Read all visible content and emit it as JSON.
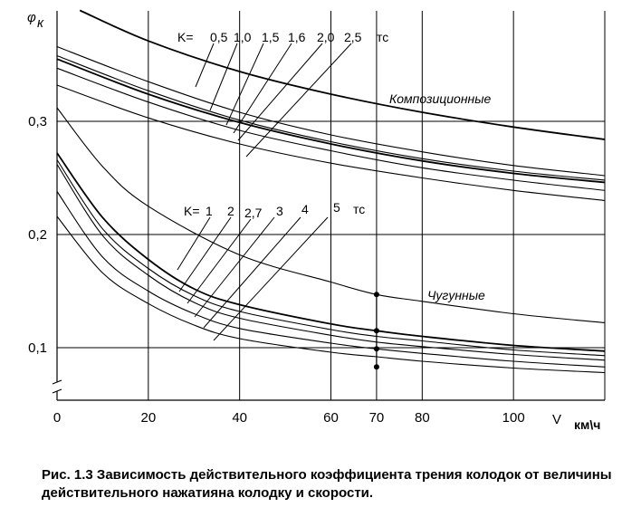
{
  "chart_data": {
    "type": "line",
    "title": "",
    "xlabel": "V",
    "xunit": "км\\ч",
    "ylabel": "φк",
    "xlim": [
      0,
      120
    ],
    "ylim": [
      0.05,
      0.4
    ],
    "grid": true,
    "x_ticks": [
      0,
      20,
      40,
      60,
      70,
      80,
      100
    ],
    "x_tick_labels": [
      "0",
      "20",
      "40",
      "60",
      "70",
      "80",
      "100"
    ],
    "y_ticks": [
      0.1,
      0.2,
      0.3
    ],
    "y_tick_labels": [
      "0,1",
      "0,2",
      "0,3"
    ],
    "groups": [
      {
        "name": "Композиционные",
        "k_label": "K=",
        "unit": "тс",
        "k_values": [
          "0,5",
          "1,0",
          "1,5",
          "1,6",
          "2,0",
          "2,5"
        ],
        "series": [
          {
            "name": "0,5",
            "x": [
              5,
              20,
              40,
              60,
              80,
              100,
              120
            ],
            "y": [
              0.398,
              0.371,
              0.344,
              0.324,
              0.308,
              0.295,
              0.284
            ]
          },
          {
            "name": "1,0",
            "x": [
              0,
              20,
              40,
              60,
              80,
              100,
              120
            ],
            "y": [
              0.366,
              0.335,
              0.308,
              0.288,
              0.273,
              0.261,
              0.252
            ]
          },
          {
            "name": "1,5",
            "x": [
              0,
              20,
              40,
              60,
              80,
              100,
              120
            ],
            "y": [
              0.358,
              0.327,
              0.301,
              0.282,
              0.267,
              0.256,
              0.248
            ]
          },
          {
            "name": "1,6",
            "x": [
              0,
              20,
              40,
              60,
              80,
              100,
              120
            ],
            "y": [
              0.355,
              0.324,
              0.299,
              0.28,
              0.265,
              0.254,
              0.246
            ]
          },
          {
            "name": "2,0",
            "x": [
              0,
              20,
              40,
              60,
              80,
              100,
              120
            ],
            "y": [
              0.347,
              0.317,
              0.292,
              0.274,
              0.259,
              0.248,
              0.239
            ]
          },
          {
            "name": "2,5",
            "x": [
              0,
              20,
              40,
              60,
              80,
              100,
              120
            ],
            "y": [
              0.332,
              0.303,
              0.28,
              0.263,
              0.25,
              0.239,
              0.23
            ]
          }
        ]
      },
      {
        "name": "Чугунные",
        "k_label": "K=",
        "unit": "тс",
        "k_values": [
          "1",
          "2",
          "2,7",
          "3",
          "4",
          "5"
        ],
        "series": [
          {
            "name": "1",
            "x": [
              0,
              10,
              20,
              40,
              60,
              70,
              80,
              100,
              120
            ],
            "y": [
              0.312,
              0.26,
              0.225,
              0.182,
              0.158,
              0.147,
              0.141,
              0.13,
              0.122
            ]
          },
          {
            "name": "2",
            "x": [
              0,
              10,
              20,
              30,
              40,
              60,
              70,
              80,
              100,
              120
            ],
            "y": [
              0.272,
              0.215,
              0.178,
              0.152,
              0.138,
              0.121,
              0.115,
              0.11,
              0.102,
              0.097
            ]
          },
          {
            "name": "2,7",
            "x": [
              0,
              10,
              20,
              30,
              40,
              60,
              70,
              80,
              100,
              120
            ],
            "y": [
              0.266,
              0.205,
              0.17,
              0.146,
              0.132,
              0.116,
              0.11,
              0.106,
              0.098,
              0.093
            ]
          },
          {
            "name": "3",
            "x": [
              0,
              10,
              20,
              30,
              40,
              60,
              70,
              80,
              100,
              120
            ],
            "y": [
              0.262,
              0.199,
              0.164,
              0.14,
              0.126,
              0.111,
              0.105,
              0.101,
              0.094,
              0.089
            ]
          },
          {
            "name": "4",
            "x": [
              0,
              10,
              20,
              30,
              40,
              60,
              70,
              80,
              100,
              120
            ],
            "y": [
              0.238,
              0.18,
              0.15,
              0.13,
              0.117,
              0.104,
              0.099,
              0.095,
              0.088,
              0.083
            ]
          },
          {
            "name": "5",
            "x": [
              0,
              10,
              20,
              30,
              40,
              60,
              70,
              80,
              100,
              120
            ],
            "y": [
              0.216,
              0.166,
              0.139,
              0.12,
              0.108,
              0.096,
              0.092,
              0.088,
              0.082,
              0.078
            ]
          }
        ]
      }
    ],
    "markers": {
      "x": 70,
      "y": [
        0.147,
        0.115,
        0.099,
        0.083
      ]
    }
  },
  "caption": "Рис.  1.3   Зависимость действительного коэффициента трения колодок от величины действительного нажатияна колодку  и   скорости."
}
